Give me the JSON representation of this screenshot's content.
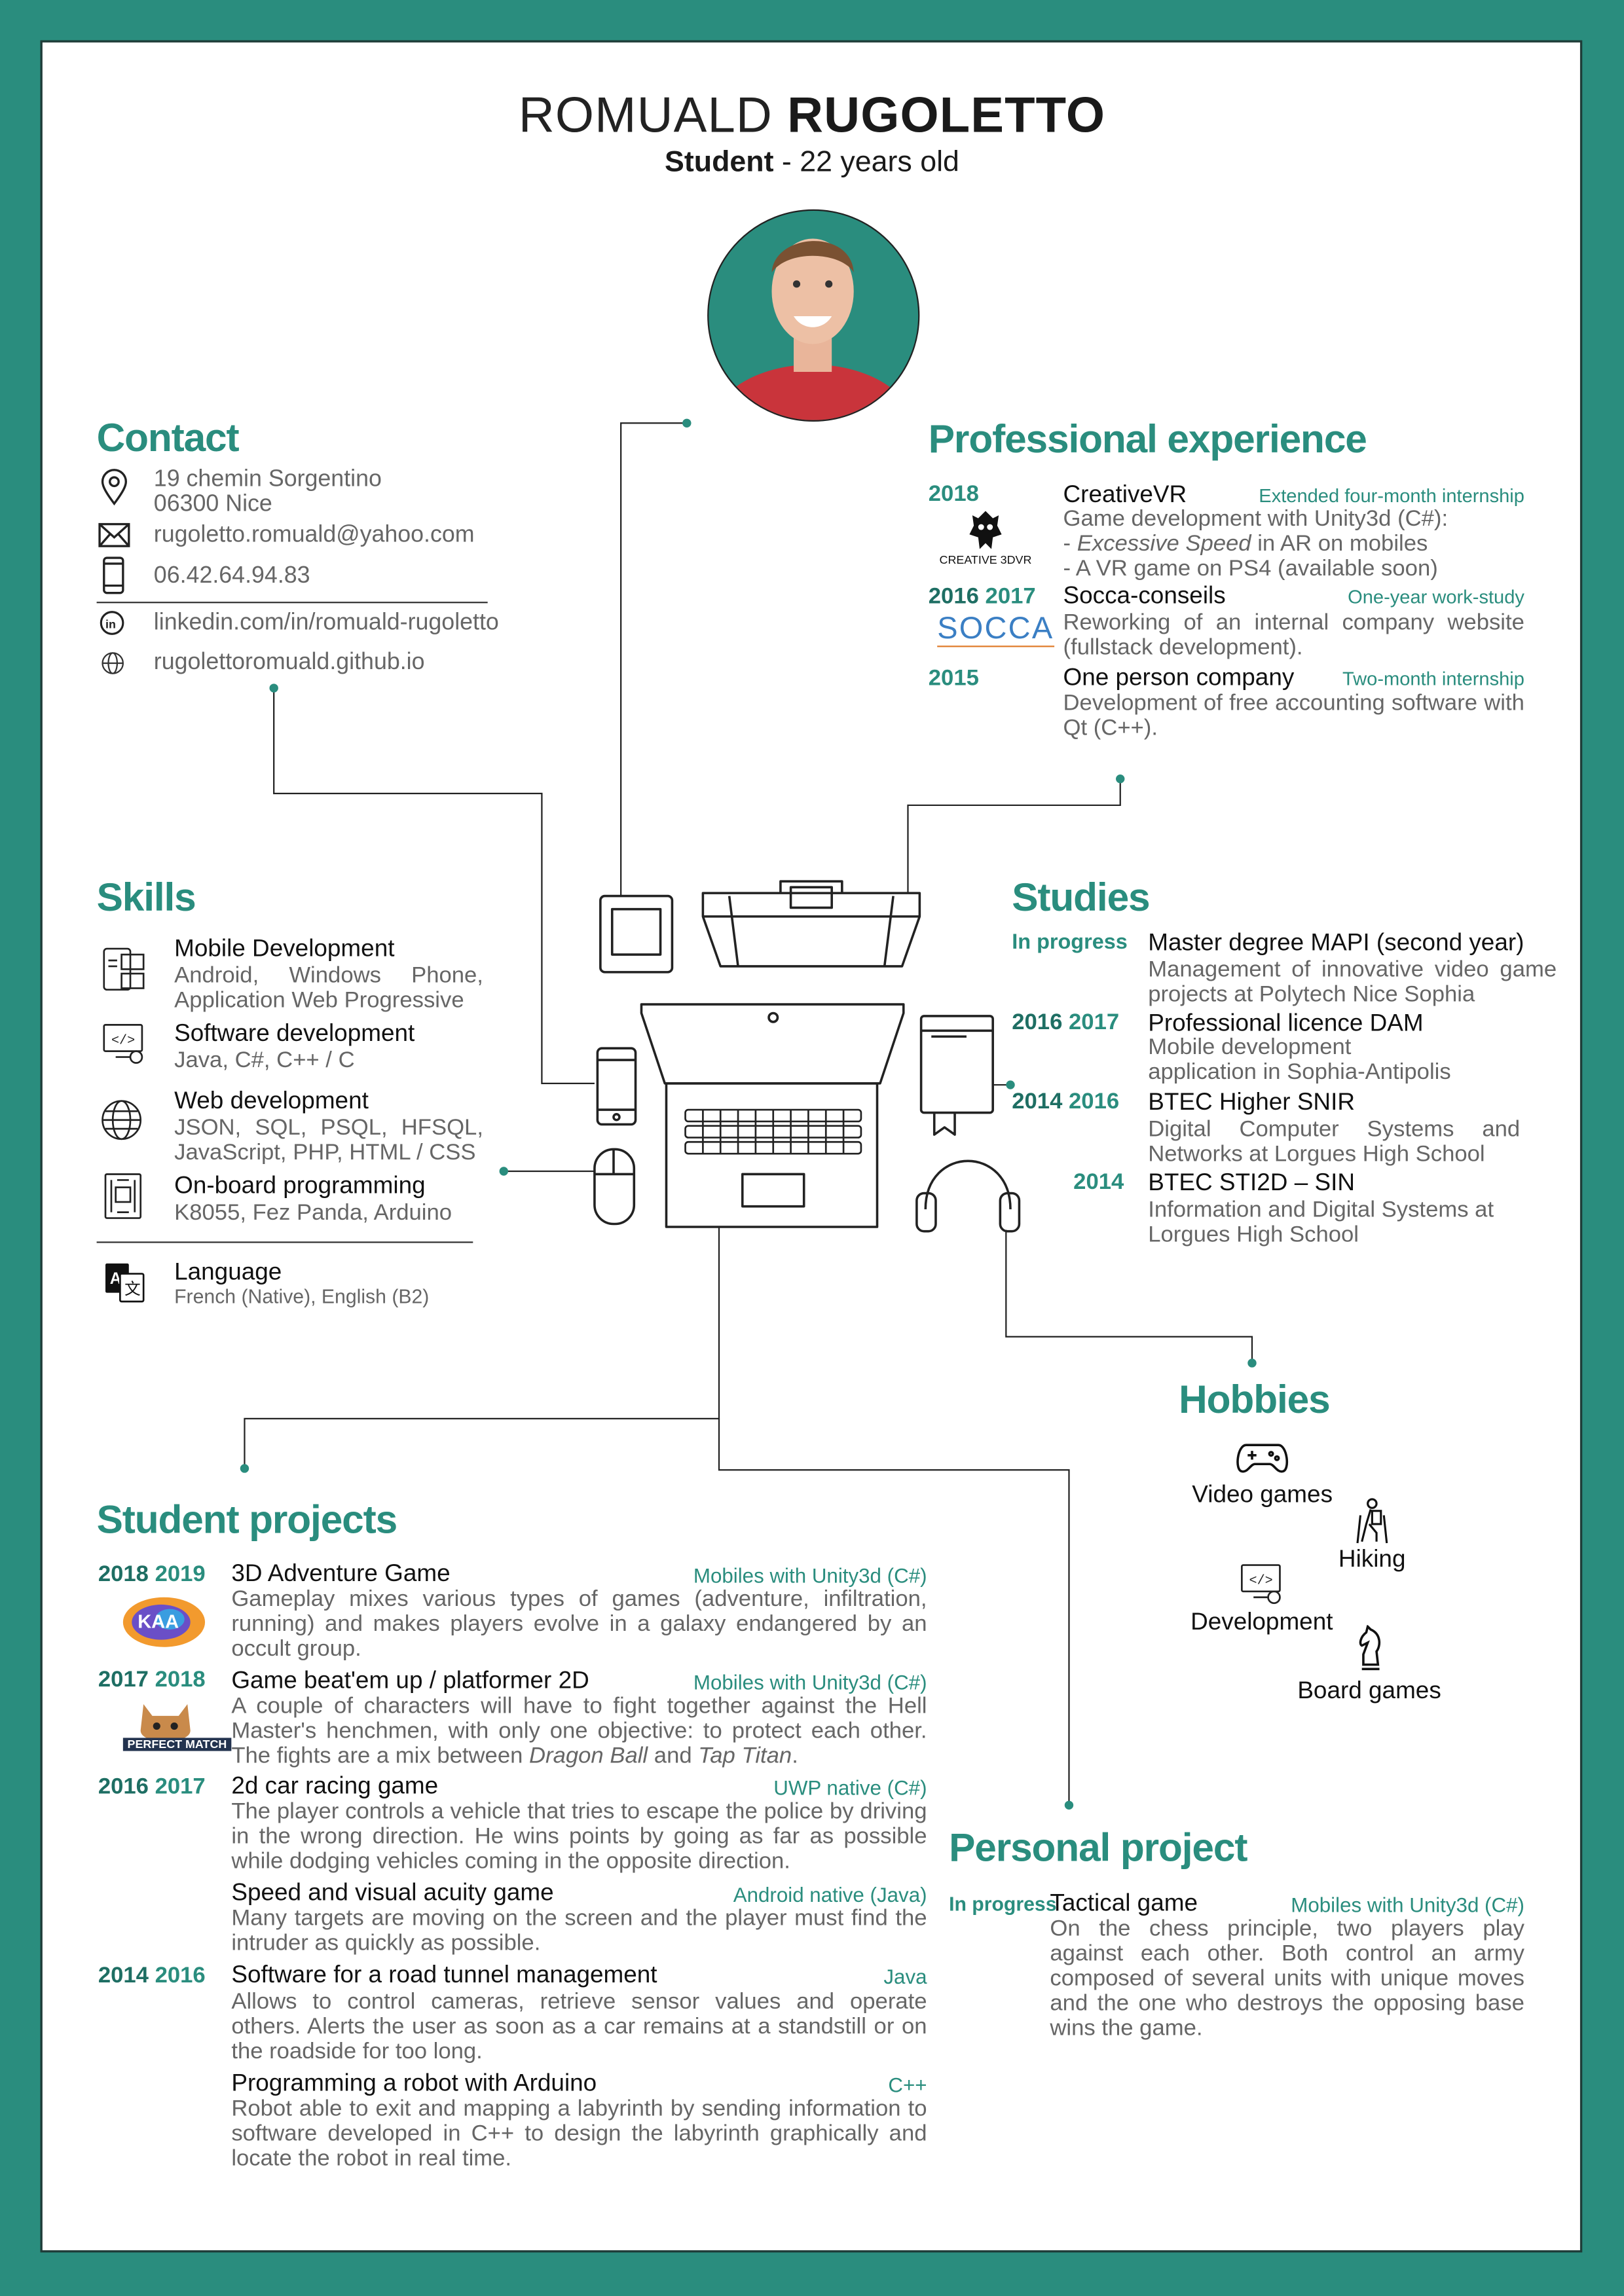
{
  "name": {
    "first": "ROMUALD",
    "last": "RUGOLETTO"
  },
  "subtitle": {
    "role": "Student",
    "age": " - 22 years old"
  },
  "contact": {
    "title": "Contact",
    "address1": "19 chemin Sorgentino",
    "address2": "06300 Nice",
    "email": "rugoletto.romuald@yahoo.com",
    "phone": "06.42.64.94.83",
    "linkedin": "linkedin.com/in/romuald-rugoletto",
    "website": "rugolettoromuald.github.io"
  },
  "experience": {
    "title": "Professional experience",
    "items": [
      {
        "years": "2018",
        "company": "CreativeVR",
        "type": "Extended four-month internship",
        "desc": "Game development with Unity3d (C#):",
        "bullet1_pre": " - ",
        "bullet1_em": "Excessive Speed",
        "bullet1_post": " in AR on mobiles",
        "bullet2": " - A VR game on PS4 (available soon)",
        "logo_text": "CREATIVE 3DVR"
      },
      {
        "y1": "2016",
        "y2": "2017",
        "company": "Socca-conseils",
        "type": "One-year work-study",
        "desc": "Reworking of an internal company website (fullstack development).",
        "logo_text": "SOCCA"
      },
      {
        "years": "2015",
        "company": "One person company",
        "type": "Two-month internship",
        "desc": "Development of free accounting software with Qt (C++)."
      }
    ]
  },
  "skills": {
    "title": "Skills",
    "items": [
      {
        "name": "Mobile Development",
        "desc": "Android, Windows Phone, Application Web Progressive",
        "icon": "mobile-dev-icon"
      },
      {
        "name": "Software development",
        "desc": "Java, C#, C++ / C",
        "icon": "software-dev-icon"
      },
      {
        "name": "Web development",
        "desc": "JSON, SQL, PSQL, HFSQL, JavaScript, PHP, HTML / CSS",
        "icon": "globe-icon"
      },
      {
        "name": "On-board programming",
        "desc": "K8055, Fez Panda, Arduino",
        "icon": "chip-icon"
      }
    ],
    "language": {
      "name": "Language",
      "desc": "French (Native), English (B2)"
    }
  },
  "studies": {
    "title": "Studies",
    "items": [
      {
        "years": "In progress",
        "name": "Master degree MAPI (second year)",
        "desc": "Management of innovative video game projects at Polytech Nice Sophia"
      },
      {
        "y1": "2016",
        "y2": "2017",
        "name": "Professional licence DAM",
        "desc1": "Mobile development",
        "desc2": "application in Sophia-Antipolis"
      },
      {
        "y1": "2014",
        "y2": "2016",
        "name": "BTEC Higher SNIR",
        "desc": "Digital Computer Systems and Networks at Lorgues High School"
      },
      {
        "years": "2014",
        "name": "BTEC STI2D – SIN",
        "desc": "Information and Digital Systems at Lorgues High School"
      }
    ]
  },
  "hobbies": {
    "title": "Hobbies",
    "items": [
      "Video games",
      "Hiking",
      "Development",
      "Board games"
    ]
  },
  "projects": {
    "title": "Student projects",
    "items": [
      {
        "y1": "2018",
        "y2": "2019",
        "name": "3D Adventure Game",
        "tech": "Mobiles with Unity3d (C#)",
        "desc": "Gameplay mixes various types of games (adventure, infiltration, running) and makes players evolve in a galaxy endangered by an occult group."
      },
      {
        "y1": "2017",
        "y2": "2018",
        "name": "Game beat'em up / platformer 2D",
        "tech": "Mobiles with Unity3d (C#)",
        "desc_pre": "A couple of characters will have to fight together against the Hell Master's henchmen, with only one objective: to protect each other. The fights are a mix between ",
        "desc_em1": "Dragon Ball",
        "desc_mid": " and ",
        "desc_em2": "Tap Titan",
        "desc_post": ".",
        "logo_text": "PERFECT MATCH"
      },
      {
        "y1": "2016",
        "y2": "2017",
        "name": "2d car racing game",
        "tech": "UWP native (C#)",
        "desc": "The player controls a vehicle that tries to escape the police by driving in the wrong direction. He wins points by going as far as possible while dodging vehicles coming in the opposite direction."
      },
      {
        "name": "Speed and visual acuity game",
        "tech": "Android native (Java)",
        "desc": "Many targets are moving on the screen and the player must find the intruder as quickly as possible."
      },
      {
        "y1": "2014",
        "y2": "2016",
        "name": "Software for a road tunnel management",
        "tech": "Java",
        "desc": "Allows to control cameras, retrieve sensor values and operate others. Alerts the user as soon as a car remains at a standstill or on the roadside for too long."
      },
      {
        "name": "Programming a robot with Arduino",
        "tech": "C++",
        "desc": "Robot able to exit and mapping a labyrinth by sending information to software developed in C++ to design the labyrinth graphically and locate the robot in real time."
      }
    ]
  },
  "personal": {
    "title": "Personal project",
    "years": "In progress",
    "name": "Tactical game",
    "tech": "Mobiles with Unity3d (C#)",
    "desc": "On the chess principle, two players play against each other. Both control an army composed of several units with unique moves and the one who destroys the opposing base wins the game."
  },
  "colors": {
    "accent": "#2a8d7e",
    "border": "#2a8d7e",
    "text": "#111111",
    "muted": "#666666"
  }
}
